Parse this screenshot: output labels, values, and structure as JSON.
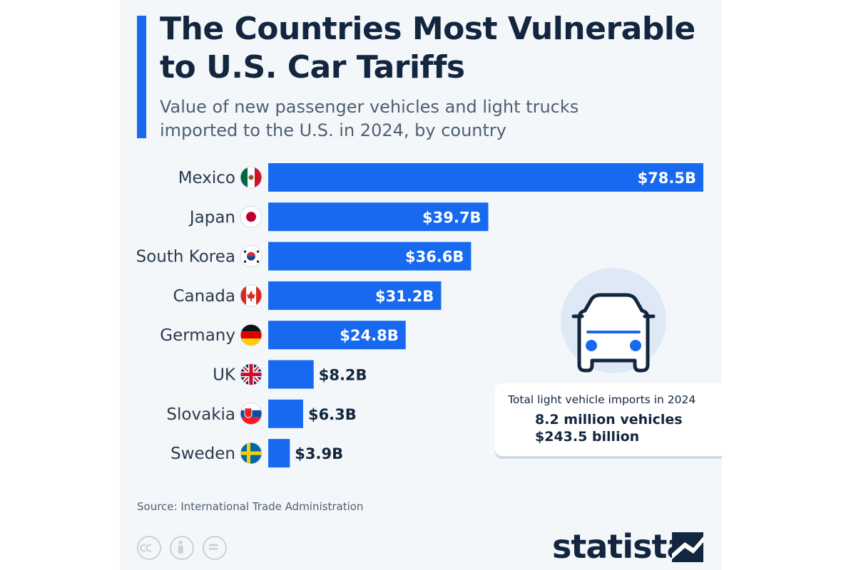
{
  "title": "The Countries Most Vulnerable to U.S. Car Tariffs",
  "subtitle": "Value of new passenger vehicles and light trucks imported to the U.S. in 2024, by country",
  "source": "Source: International Trade Administration",
  "brand": "statista",
  "info_box": {
    "label": "Total light vehicle imports in 2024",
    "vehicles": "8.2 million vehicles",
    "value": "$243.5 billion"
  },
  "icons": [
    "cc-icon",
    "attribution-icon",
    "no-derivatives-icon",
    "car-icon"
  ],
  "colors": {
    "bar": "#1769ef",
    "text_dark": "#13263f",
    "text_muted": "#4e5f72",
    "background": "#f4f7fa"
  },
  "chart_data": {
    "type": "bar",
    "orientation": "horizontal",
    "categories": [
      "Mexico",
      "Japan",
      "South Korea",
      "Canada",
      "Germany",
      "UK",
      "Slovakia",
      "Sweden"
    ],
    "values": [
      78.5,
      39.7,
      36.6,
      31.2,
      24.8,
      8.2,
      6.3,
      3.9
    ],
    "value_labels": [
      "$78.5B",
      "$39.7B",
      "$36.6B",
      "$31.2B",
      "$24.8B",
      "$8.2B",
      "$6.3B",
      "$3.9B"
    ],
    "flags": [
      "mexico-flag-icon",
      "japan-flag-icon",
      "south-korea-flag-icon",
      "canada-flag-icon",
      "germany-flag-icon",
      "uk-flag-icon",
      "slovakia-flag-icon",
      "sweden-flag-icon"
    ],
    "title": "The Countries Most Vulnerable to U.S. Car Tariffs",
    "xlabel": "",
    "ylabel": "",
    "unit": "USD billion",
    "xlim": [
      0,
      78.5
    ],
    "grid": false
  }
}
